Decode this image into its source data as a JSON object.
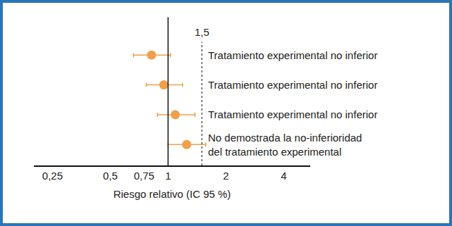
{
  "chart_data": {
    "type": "forest",
    "x_label": "Riesgo relativo (IC 95 %)",
    "log": "x",
    "xlim": [
      0.2,
      5.5
    ],
    "xticks": [
      {
        "value": 0.25,
        "label": "0,25"
      },
      {
        "value": 0.5,
        "label": "0,5"
      },
      {
        "value": 0.75,
        "label": "0,75"
      },
      1,
      2,
      4
    ],
    "categories": [
      "Tratamiento experimental no inferior",
      "Tratamiento experimental no inferior",
      "Tratamiento experimental no inferior",
      "No demostrada la no-inferioridad\ndel tratamiento experimental"
    ],
    "values": [
      0.82,
      0.95,
      1.09,
      1.25
    ],
    "ci_low": [
      0.66,
      0.77,
      0.88,
      1.0
    ],
    "ci_high": [
      1.03,
      1.19,
      1.38,
      1.57
    ],
    "reference_lines": [
      {
        "value": 1,
        "line_style": "solid"
      },
      {
        "value": 1.5,
        "label": "1,5",
        "line_style": "dotted"
      }
    ],
    "color": "#f0a04b",
    "marker": "circle",
    "tick_labels": "x",
    "grid": false
  }
}
